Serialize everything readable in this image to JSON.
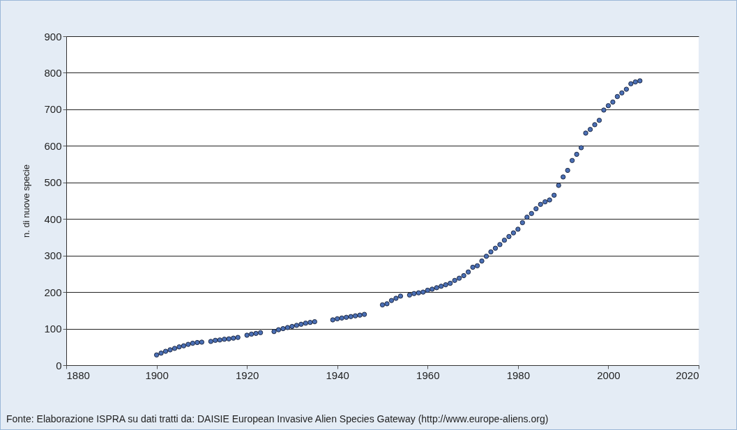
{
  "chart_data": {
    "type": "scatter",
    "ylabel": "n. di nuove specie",
    "x": [
      1900,
      1901,
      1902,
      1903,
      1904,
      1905,
      1906,
      1907,
      1908,
      1909,
      1910,
      1912,
      1913,
      1914,
      1915,
      1916,
      1917,
      1918,
      1920,
      1921,
      1922,
      1923,
      1926,
      1927,
      1928,
      1929,
      1930,
      1931,
      1932,
      1933,
      1934,
      1935,
      1939,
      1940,
      1941,
      1942,
      1943,
      1944,
      1945,
      1946,
      1950,
      1951,
      1952,
      1953,
      1954,
      1956,
      1957,
      1958,
      1959,
      1960,
      1961,
      1962,
      1963,
      1964,
      1965,
      1966,
      1967,
      1968,
      1969,
      1970,
      1971,
      1972,
      1973,
      1974,
      1975,
      1976,
      1977,
      1978,
      1979,
      1980,
      1981,
      1982,
      1983,
      1984,
      1985,
      1986,
      1987,
      1988,
      1989,
      1990,
      1991,
      1992,
      1993,
      1994,
      1995,
      1996,
      1997,
      1998,
      1999,
      2000,
      2001,
      2002,
      2003,
      2004,
      2005,
      2006,
      2007
    ],
    "series": [
      {
        "color": "#4a6fb5",
        "values": [
          28,
          33,
          38,
          42,
          46,
          50,
          53,
          57,
          60,
          62,
          63,
          65,
          68,
          69,
          71,
          72,
          74,
          76,
          82,
          85,
          87,
          89,
          92,
          97,
          100,
          103,
          106,
          109,
          112,
          115,
          117,
          119,
          124,
          127,
          129,
          131,
          133,
          135,
          137,
          139,
          165,
          168,
          177,
          183,
          189,
          192,
          196,
          198,
          200,
          205,
          208,
          212,
          216,
          220,
          224,
          232,
          238,
          245,
          255,
          268,
          272,
          285,
          298,
          310,
          320,
          330,
          342,
          352,
          362,
          372,
          390,
          405,
          415,
          428,
          440,
          447,
          452,
          465,
          492,
          515,
          533,
          560,
          577,
          595,
          635,
          645,
          658,
          670,
          698,
          710,
          720,
          735,
          745,
          755,
          770,
          775,
          778
        ]
      }
    ],
    "xlim": [
      1880,
      2020
    ],
    "xticks": [
      1880,
      1900,
      1920,
      1940,
      1960,
      1980,
      2000,
      2020
    ],
    "ylim": [
      0,
      900
    ],
    "yticks": [
      0,
      100,
      200,
      300,
      400,
      500,
      600,
      700,
      800,
      900
    ],
    "grid": "y",
    "marker": "circle",
    "annotations": [
      "Fonte: Elaborazione ISPRA su dati tratti da: DAISIE European Invasive Alien Species Gateway (http://www.europe-aliens.org)"
    ]
  }
}
